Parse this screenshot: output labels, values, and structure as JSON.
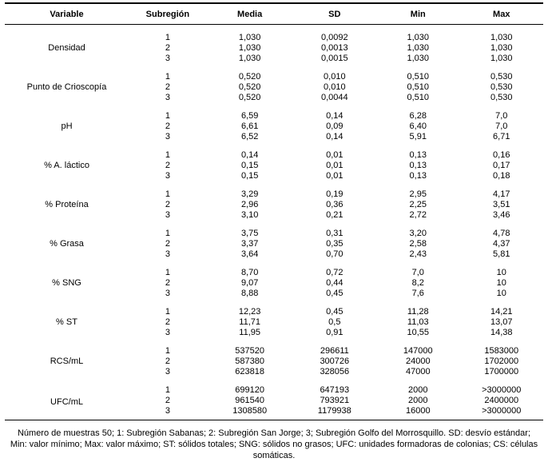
{
  "table": {
    "headers": [
      "Variable",
      "Subregión",
      "Media",
      "SD",
      "Min",
      "Max"
    ],
    "groups": [
      {
        "variable": "Densidad",
        "rows": [
          [
            "1",
            "1,030",
            "0,0092",
            "1,030",
            "1,030"
          ],
          [
            "2",
            "1,030",
            "0,0013",
            "1,030",
            "1,030"
          ],
          [
            "3",
            "1,030",
            "0,0015",
            "1,030",
            "1,030"
          ]
        ]
      },
      {
        "variable": "Punto de Crioscopía",
        "rows": [
          [
            "1",
            "0,520",
            "0,010",
            "0,510",
            "0,530"
          ],
          [
            "2",
            "0,520",
            "0,010",
            "0,510",
            "0,530"
          ],
          [
            "3",
            "0,520",
            "0,0044",
            "0,510",
            "0,530"
          ]
        ]
      },
      {
        "variable": "pH",
        "rows": [
          [
            "1",
            "6,59",
            "0,14",
            "6,28",
            "7,0"
          ],
          [
            "2",
            "6,61",
            "0,09",
            "6,40",
            "7,0"
          ],
          [
            "3",
            "6,52",
            "0,14",
            "5,91",
            "6,71"
          ]
        ]
      },
      {
        "variable": "% A. láctico",
        "rows": [
          [
            "1",
            "0,14",
            "0,01",
            "0,13",
            "0,16"
          ],
          [
            "2",
            "0,15",
            "0,01",
            "0,13",
            "0,17"
          ],
          [
            "3",
            "0,15",
            "0,01",
            "0,13",
            "0,18"
          ]
        ]
      },
      {
        "variable": "% Proteína",
        "rows": [
          [
            "1",
            "3,29",
            "0,19",
            "2,95",
            "4,17"
          ],
          [
            "2",
            "2,96",
            "0,36",
            "2,25",
            "3,51"
          ],
          [
            "3",
            "3,10",
            "0,21",
            "2,72",
            "3,46"
          ]
        ]
      },
      {
        "variable": "% Grasa",
        "rows": [
          [
            "1",
            "3,75",
            "0,31",
            "3,20",
            "4,78"
          ],
          [
            "2",
            "3,37",
            "0,35",
            "2,58",
            "4,37"
          ],
          [
            "3",
            "3,64",
            "0,70",
            "2,43",
            "5,81"
          ]
        ]
      },
      {
        "variable": "% SNG",
        "rows": [
          [
            "1",
            "8,70",
            "0,72",
            "7,0",
            "10"
          ],
          [
            "2",
            "9,07",
            "0,44",
            "8,2",
            "10"
          ],
          [
            "3",
            "8,88",
            "0,45",
            "7,6",
            "10"
          ]
        ]
      },
      {
        "variable": "% ST",
        "rows": [
          [
            "1",
            "12,23",
            "0,45",
            "11,28",
            "14,21"
          ],
          [
            "2",
            "11,71",
            "0,5",
            "11,03",
            "13,07"
          ],
          [
            "3",
            "11,95",
            "0,91",
            "10,55",
            "14,38"
          ]
        ]
      },
      {
        "variable": "RCS/mL",
        "rows": [
          [
            "1",
            "537520",
            "296611",
            "147000",
            "1583000"
          ],
          [
            "2",
            "587380",
            "300726",
            "24000",
            "1702000"
          ],
          [
            "3",
            "623818",
            "328056",
            "47000",
            "1700000"
          ]
        ]
      },
      {
        "variable": "UFC/mL",
        "rows": [
          [
            "1",
            "699120",
            "647193",
            "2000",
            ">3000000"
          ],
          [
            "2",
            "961540",
            "793921",
            "2000",
            "2400000"
          ],
          [
            "3",
            "1308580",
            "1179938",
            "16000",
            ">3000000"
          ]
        ]
      }
    ]
  },
  "footnote": {
    "text": "Número de muestras 50; 1: Subregión Sabanas; 2: Subregión San Jorge; 3; Subregión Golfo del Morrosquillo. SD: desvío estándar; Min: valor mínimo; Max: valor máximo; ST: sólidos totales; SNG: sólidos no grasos; UFC: unidades formadoras de colonias; CS: células somáticas."
  }
}
